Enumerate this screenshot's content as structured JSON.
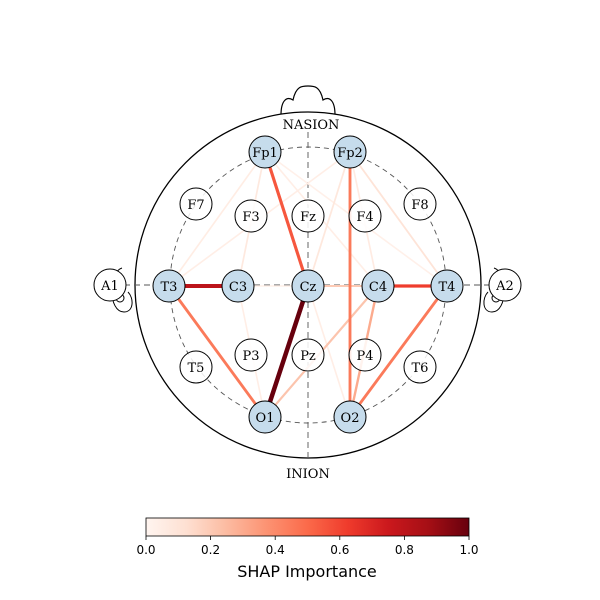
{
  "head": {
    "top_label": "NASION",
    "bottom_label": "INION",
    "ears": [
      {
        "id": "A1",
        "label": "A1"
      },
      {
        "id": "A2",
        "label": "A2"
      }
    ]
  },
  "electrodes": [
    {
      "id": "Fp1",
      "label": "Fp1",
      "highlighted": true
    },
    {
      "id": "Fp2",
      "label": "Fp2",
      "highlighted": true
    },
    {
      "id": "F7",
      "label": "F7",
      "highlighted": false
    },
    {
      "id": "F3",
      "label": "F3",
      "highlighted": false
    },
    {
      "id": "Fz",
      "label": "Fz",
      "highlighted": false
    },
    {
      "id": "F4",
      "label": "F4",
      "highlighted": false
    },
    {
      "id": "F8",
      "label": "F8",
      "highlighted": false
    },
    {
      "id": "T3",
      "label": "T3",
      "highlighted": true
    },
    {
      "id": "C3",
      "label": "C3",
      "highlighted": true
    },
    {
      "id": "Cz",
      "label": "Cz",
      "highlighted": true
    },
    {
      "id": "C4",
      "label": "C4",
      "highlighted": true
    },
    {
      "id": "T4",
      "label": "T4",
      "highlighted": true
    },
    {
      "id": "T5",
      "label": "T5",
      "highlighted": false
    },
    {
      "id": "P3",
      "label": "P3",
      "highlighted": false
    },
    {
      "id": "Pz",
      "label": "Pz",
      "highlighted": false
    },
    {
      "id": "P4",
      "label": "P4",
      "highlighted": false
    },
    {
      "id": "T6",
      "label": "T6",
      "highlighted": false
    },
    {
      "id": "O1",
      "label": "O1",
      "highlighted": true
    },
    {
      "id": "O2",
      "label": "O2",
      "highlighted": true
    }
  ],
  "connections": [
    {
      "from": "Fp1",
      "to": "T3",
      "importance": 0.05
    },
    {
      "from": "Fp1",
      "to": "C3",
      "importance": 0.07
    },
    {
      "from": "Fp1",
      "to": "Cz",
      "importance": 0.55
    },
    {
      "from": "Fp1",
      "to": "C4",
      "importance": 0.04
    },
    {
      "from": "Fp1",
      "to": "T4",
      "importance": 0.03
    },
    {
      "from": "Fp2",
      "to": "T3",
      "importance": 0.04
    },
    {
      "from": "Fp2",
      "to": "Cz",
      "importance": 0.08
    },
    {
      "from": "Fp2",
      "to": "C4",
      "importance": 0.06
    },
    {
      "from": "Fp2",
      "to": "T4",
      "importance": 0.1
    },
    {
      "from": "Fp2",
      "to": "O2",
      "importance": 0.45
    },
    {
      "from": "T3",
      "to": "C3",
      "importance": 0.8
    },
    {
      "from": "C3",
      "to": "Cz",
      "importance": 0.03
    },
    {
      "from": "Cz",
      "to": "C4",
      "importance": 0.2
    },
    {
      "from": "C4",
      "to": "T4",
      "importance": 0.62
    },
    {
      "from": "T3",
      "to": "O1",
      "importance": 0.45
    },
    {
      "from": "C3",
      "to": "O1",
      "importance": 0.04
    },
    {
      "from": "Cz",
      "to": "O1",
      "importance": 1.0
    },
    {
      "from": "Cz",
      "to": "O2",
      "importance": 0.04
    },
    {
      "from": "O1",
      "to": "C4",
      "importance": 0.22
    },
    {
      "from": "C4",
      "to": "O2",
      "importance": 0.3
    },
    {
      "from": "T4",
      "to": "O2",
      "importance": 0.45
    }
  ],
  "colorbar": {
    "label": "SHAP Importance",
    "min": 0.0,
    "max": 1.0,
    "colormap": "Reds",
    "ticks": [
      "0.0",
      "0.2",
      "0.4",
      "0.6",
      "0.8",
      "1.0"
    ],
    "tick_values": [
      0.0,
      0.2,
      0.4,
      0.6,
      0.8,
      1.0
    ]
  },
  "colors": {
    "highlight_fill": "#c6dcec",
    "node_fill": "#ffffff",
    "outline": "#000000",
    "grid_dash": "#555555"
  }
}
